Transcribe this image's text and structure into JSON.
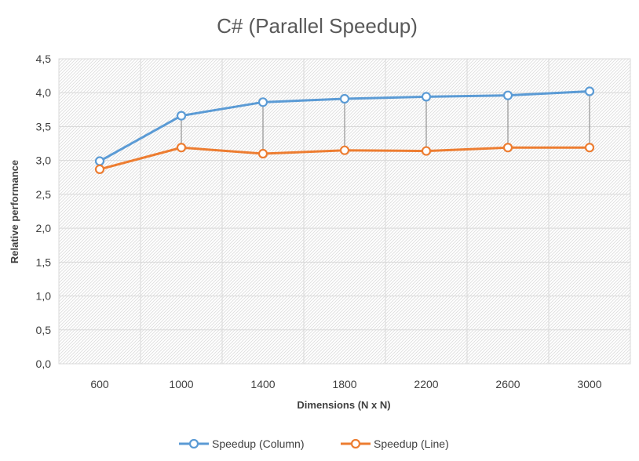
{
  "chart_data": {
    "type": "line",
    "title": "C# (Parallel Speedup)",
    "xlabel": "Dimensions (N x N)",
    "ylabel": "Relative performance",
    "categories": [
      "600",
      "1000",
      "1400",
      "1800",
      "2200",
      "2600",
      "3000"
    ],
    "ylim": [
      0,
      4.5
    ],
    "ytick_labels": [
      "0,0",
      "0,5",
      "1,0",
      "1,5",
      "2,0",
      "2,5",
      "3,0",
      "3,5",
      "4,0",
      "4,5"
    ],
    "grid": true,
    "high_low_lines": true,
    "legend_position": "bottom",
    "series": [
      {
        "name": "Speedup (Column)",
        "color": "#5b9bd5",
        "values": [
          2.99,
          3.66,
          3.86,
          3.91,
          3.94,
          3.96,
          4.02
        ]
      },
      {
        "name": "Speedup (Line)",
        "color": "#ed7d31",
        "values": [
          2.87,
          3.19,
          3.1,
          3.15,
          3.14,
          3.19,
          3.19
        ]
      }
    ]
  }
}
